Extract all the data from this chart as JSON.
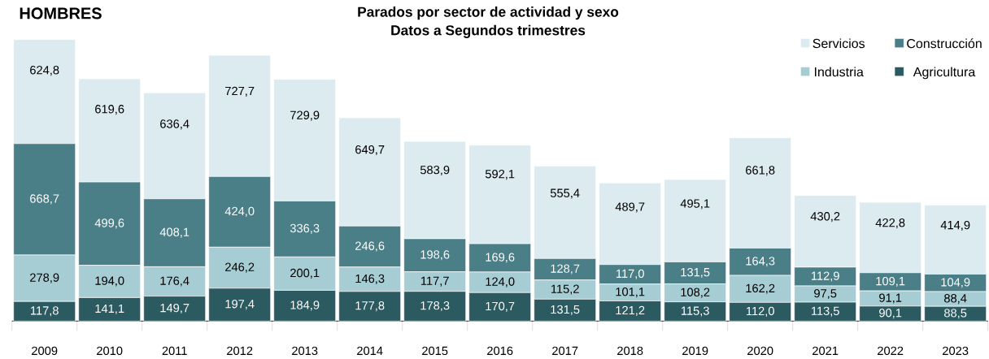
{
  "chart_data": {
    "type": "bar",
    "stacked": true,
    "title": "Parados por sector de actividad y sexo",
    "subtitle": "Datos a Segundos trimestres",
    "annotations": [
      "HOMBRES"
    ],
    "legend": "top right",
    "categories": [
      "2009",
      "2010",
      "2011",
      "2012",
      "2013",
      "2014",
      "2015",
      "2016",
      "2017",
      "2018",
      "2019",
      "2020",
      "2021",
      "2022",
      "2023"
    ],
    "series": [
      {
        "name": "Agricultura",
        "color": "#2b5a61",
        "values": [
          117.8,
          141.1,
          149.7,
          197.4,
          184.9,
          177.8,
          178.3,
          170.7,
          131.5,
          121.2,
          115.3,
          112.0,
          113.5,
          90.1,
          88.5
        ],
        "value_labels": [
          "117,8",
          "141,1",
          "149,7",
          "197,4",
          "184,9",
          "177,8",
          "178,3",
          "170,7",
          "131,5",
          "121,2",
          "115,3",
          "112,0",
          "113,5",
          "90,1",
          "88,5"
        ]
      },
      {
        "name": "Industria",
        "color": "#a6cdd4",
        "values": [
          278.9,
          194.0,
          176.4,
          246.2,
          200.1,
          146.3,
          117.7,
          124.0,
          115.2,
          101.1,
          108.2,
          162.2,
          97.5,
          91.1,
          88.4
        ],
        "value_labels": [
          "278,9",
          "194,0",
          "176,4",
          "246,2",
          "200,1",
          "146,3",
          "117,7",
          "124,0",
          "115,2",
          "101,1",
          "108,2",
          "162,2",
          "97,5",
          "91,1",
          "88,4"
        ]
      },
      {
        "name": "Construcción",
        "color": "#4a7f88",
        "values": [
          668.7,
          499.6,
          408.1,
          424.0,
          336.3,
          246.6,
          198.6,
          169.6,
          128.7,
          117.0,
          131.5,
          164.3,
          112.9,
          109.1,
          104.9
        ],
        "value_labels": [
          "668,7",
          "499,6",
          "408,1",
          "424,0",
          "336,3",
          "246,6",
          "198,6",
          "169,6",
          "128,7",
          "117,0",
          "131,5",
          "164,3",
          "112,9",
          "109,1",
          "104,9"
        ]
      },
      {
        "name": "Servicios",
        "color": "#dcebef",
        "values": [
          624.8,
          619.6,
          636.4,
          727.7,
          729.9,
          649.7,
          583.9,
          592.1,
          555.4,
          489.7,
          495.1,
          661.8,
          430.2,
          422.8,
          414.9
        ],
        "value_labels": [
          "624,8",
          "619,6",
          "636,4",
          "727,7",
          "729,9",
          "649,7",
          "583,9",
          "592,1",
          "555,4",
          "489,7",
          "495,1",
          "661,8",
          "430,2",
          "422,8",
          "414,9"
        ]
      }
    ]
  }
}
